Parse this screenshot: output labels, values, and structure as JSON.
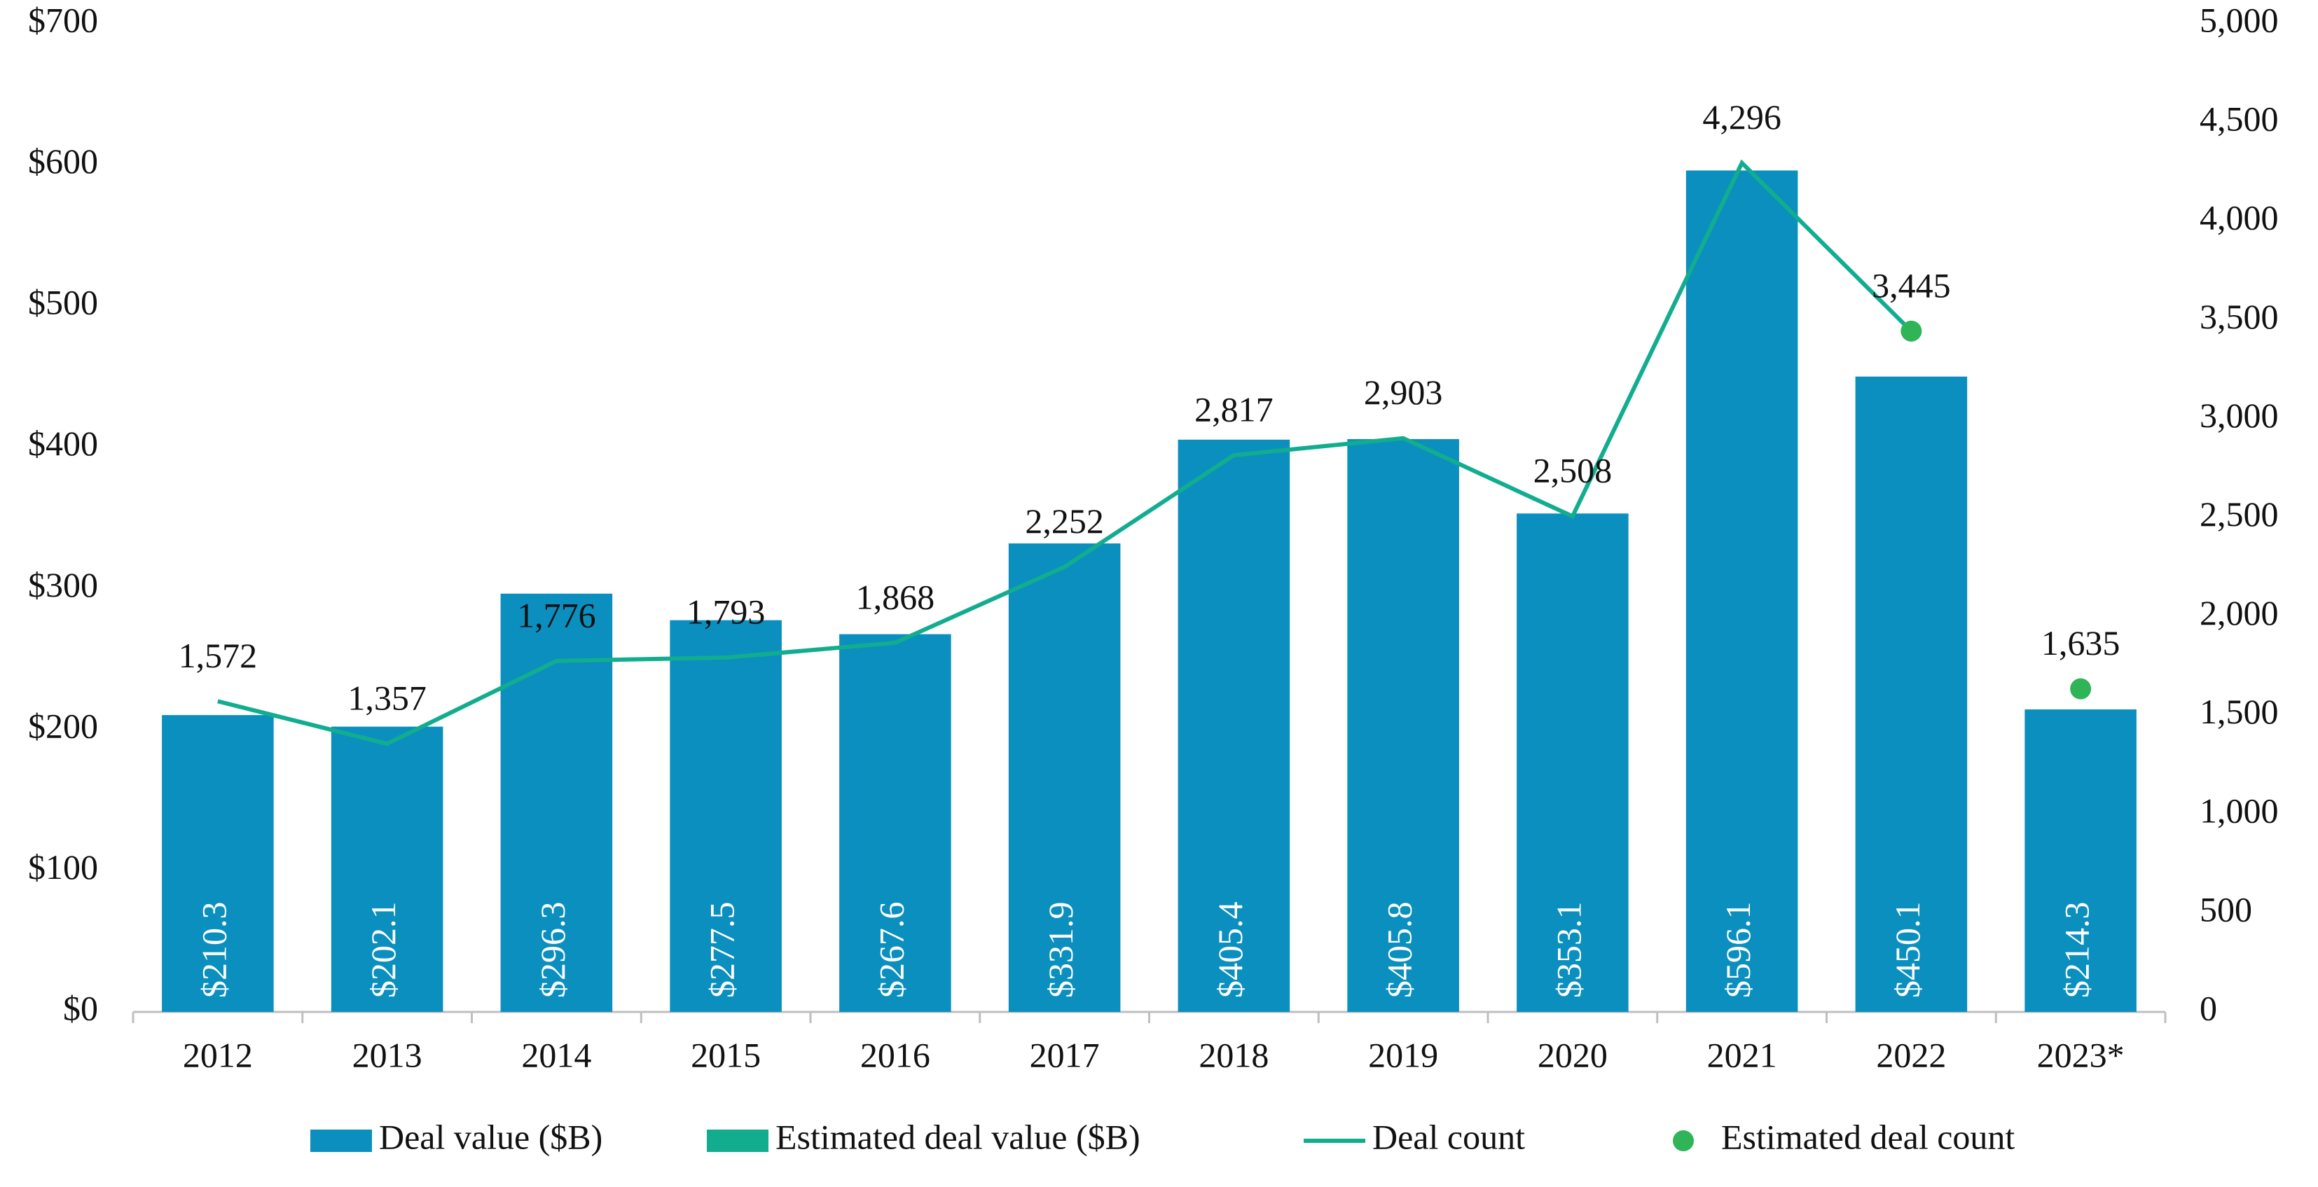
{
  "chart_data": {
    "type": "bar",
    "categories": [
      "2012",
      "2013",
      "2014",
      "2015",
      "2016",
      "2017",
      "2018",
      "2019",
      "2020",
      "2021",
      "2022",
      "2023*"
    ],
    "series": [
      {
        "name": "Deal value ($B)",
        "type": "bar",
        "color": "#0a8fbf",
        "values": [
          210.3,
          202.1,
          296.3,
          277.5,
          267.6,
          331.9,
          405.4,
          405.8,
          353.1,
          596.1,
          450.1,
          214.3
        ],
        "value_labels": [
          "$210.3",
          "$202.1",
          "$296.3",
          "$277.5",
          "$267.6",
          "$331.9",
          "$405.4",
          "$405.8",
          "$353.1",
          "$596.1",
          "$450.1",
          "$214.3"
        ]
      },
      {
        "name": "Estimated deal value ($B)",
        "type": "bar",
        "color": "#12ad8f",
        "values": [
          null,
          null,
          null,
          null,
          null,
          null,
          null,
          null,
          null,
          null,
          null,
          null
        ]
      },
      {
        "name": "Deal count",
        "type": "line",
        "axis": "y2",
        "color": "#12ad8f",
        "values": [
          1572,
          1357,
          1776,
          1793,
          1868,
          2252,
          2817,
          2903,
          2508,
          4296,
          3445,
          null
        ],
        "value_labels": [
          "1,572",
          "1,357",
          "1,776",
          "1,793",
          "1,868",
          "2,252",
          "2,817",
          "2,903",
          "2,508",
          "4,296",
          "3,445",
          null
        ]
      },
      {
        "name": "Estimated deal count",
        "type": "scatter",
        "axis": "y2",
        "color": "#2fb457",
        "values": [
          null,
          null,
          null,
          null,
          null,
          null,
          null,
          null,
          null,
          null,
          3445,
          1635
        ],
        "value_labels": [
          null,
          null,
          null,
          null,
          null,
          null,
          null,
          null,
          null,
          null,
          null,
          "1,635"
        ]
      }
    ],
    "ylim": [
      0,
      700
    ],
    "yticks": [
      {
        "value": 0,
        "label": "$0"
      },
      {
        "value": 100,
        "label": "$100"
      },
      {
        "value": 200,
        "label": "$200"
      },
      {
        "value": 300,
        "label": "$300"
      },
      {
        "value": 400,
        "label": "$400"
      },
      {
        "value": 500,
        "label": "$500"
      },
      {
        "value": 600,
        "label": "$600"
      },
      {
        "value": 700,
        "label": "$700"
      }
    ],
    "y2lim": [
      0,
      5000
    ],
    "y2ticks": [
      0,
      500,
      {
        "value": 1000,
        "label": "1,000"
      },
      {
        "value": 1500,
        "label": "1,500"
      },
      {
        "value": 2000,
        "label": "2,000"
      },
      {
        "value": 2500,
        "label": "2,500"
      },
      {
        "value": 3000,
        "label": "3,000"
      },
      {
        "value": 3500,
        "label": "3,500"
      },
      {
        "value": 4000,
        "label": "4,000"
      },
      {
        "value": 4500,
        "label": "4,500"
      },
      {
        "value": 5000,
        "label": "5,000"
      }
    ],
    "grid": false,
    "legend": "bottom"
  }
}
